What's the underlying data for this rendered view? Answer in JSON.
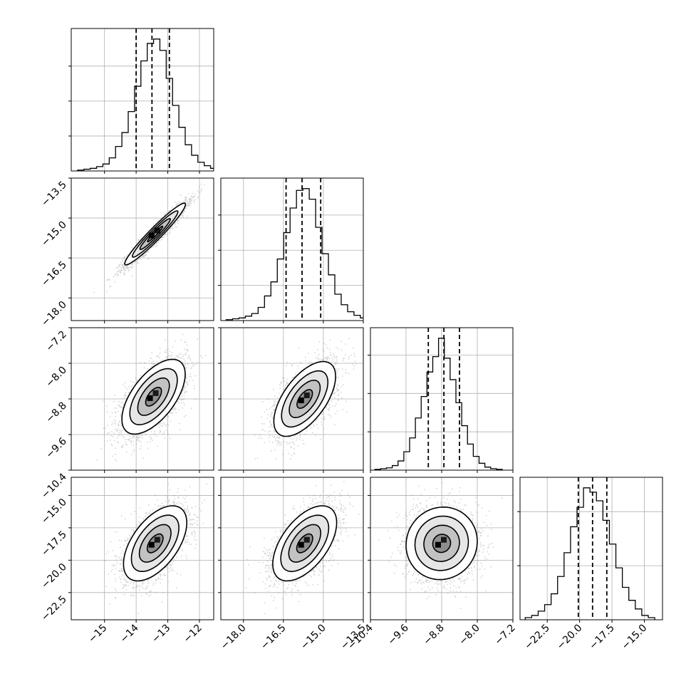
{
  "chart_data": {
    "type": "corner",
    "params": [
      {
        "ticks": [
          -15,
          -14,
          -13,
          -12
        ],
        "tick_labels": [
          "−15",
          "−14",
          "−13",
          "−12"
        ],
        "range": [
          -16.05,
          -11.55
        ]
      },
      {
        "ticks": [
          -18.0,
          -16.5,
          -15.0,
          -13.5
        ],
        "tick_labels": [
          "−18.0",
          "−16.5",
          "−15.0",
          "−13.5"
        ],
        "range": [
          -18.85,
          -13.5
        ]
      },
      {
        "ticks": [
          -10.4,
          -9.6,
          -8.8,
          -8.0,
          -7.2
        ],
        "tick_labels": [
          "−10.4",
          "−9.6",
          "−8.8",
          "−8.0",
          "−7.2"
        ],
        "range": [
          -10.4,
          -7.2
        ]
      },
      {
        "ticks": [
          -22.5,
          -20.0,
          -17.5,
          -15.0
        ],
        "tick_labels": [
          "−22.5",
          "−20.0",
          "−17.5",
          "−15.0"
        ],
        "range": [
          -24.6,
          -13.6
        ]
      }
    ],
    "marginals": [
      {
        "edges_start": -15.85,
        "bin_width": 0.2,
        "counts": [
          1,
          2,
          3,
          5,
          8,
          15,
          28,
          44,
          68,
          97,
          126,
          146,
          151,
          138,
          106,
          75,
          50,
          30,
          18,
          10,
          6,
          3,
          1
        ],
        "quantiles": [
          -14.0,
          -13.5,
          -12.95
        ],
        "yticks": [
          40,
          80,
          120
        ]
      },
      {
        "edges_start": -18.65,
        "bin_width": 0.24,
        "counts": [
          1,
          2,
          3,
          5,
          8,
          15,
          28,
          44,
          70,
          100,
          128,
          148,
          150,
          138,
          106,
          76,
          52,
          30,
          18,
          10,
          6,
          3,
          1
        ],
        "quantiles": [
          -16.4,
          -15.8,
          -15.1
        ],
        "yticks": [
          40,
          80,
          120
        ]
      },
      {
        "edges_start": -10.3,
        "bin_width": 0.13,
        "counts": [
          1,
          2,
          3,
          6,
          12,
          24,
          42,
          68,
          96,
          128,
          148,
          172,
          146,
          118,
          88,
          58,
          34,
          18,
          9,
          4,
          2,
          1
        ],
        "quantiles": [
          -9.1,
          -8.75,
          -8.4
        ],
        "yticks": [
          50,
          100,
          150
        ]
      },
      {
        "edges_start": -24.2,
        "bin_width": 0.5,
        "counts": [
          2,
          4,
          8,
          14,
          24,
          40,
          62,
          86,
          104,
          122,
          118,
          110,
          92,
          70,
          48,
          30,
          18,
          10,
          4,
          2
        ],
        "quantiles": [
          -20.1,
          -19.0,
          -17.9
        ],
        "yticks": [
          50,
          100
        ]
      }
    ],
    "pairs": [
      {
        "x": 0,
        "y": 1,
        "means": [
          -13.4,
          -15.6
        ],
        "sds": [
          0.48,
          0.58
        ],
        "corr": 0.96
      },
      {
        "x": 0,
        "y": 2,
        "means": [
          -13.45,
          -8.75
        ],
        "sds": [
          0.5,
          0.42
        ],
        "corr": 0.6
      },
      {
        "x": 1,
        "y": 2,
        "means": [
          -15.7,
          -8.8
        ],
        "sds": [
          0.58,
          0.42
        ],
        "corr": 0.6
      },
      {
        "x": 0,
        "y": 3,
        "means": [
          -13.4,
          -18.7
        ],
        "sds": [
          0.5,
          1.45
        ],
        "corr": 0.55
      },
      {
        "x": 1,
        "y": 3,
        "means": [
          -15.7,
          -18.7
        ],
        "sds": [
          0.6,
          1.45
        ],
        "corr": 0.55
      },
      {
        "x": 2,
        "y": 3,
        "means": [
          -8.8,
          -18.7
        ],
        "sds": [
          0.4,
          1.4
        ],
        "corr": 0.05
      }
    ],
    "contour_levels_sigma": [
      0.5,
      1.0,
      1.5,
      2.0
    ],
    "grid": true
  }
}
